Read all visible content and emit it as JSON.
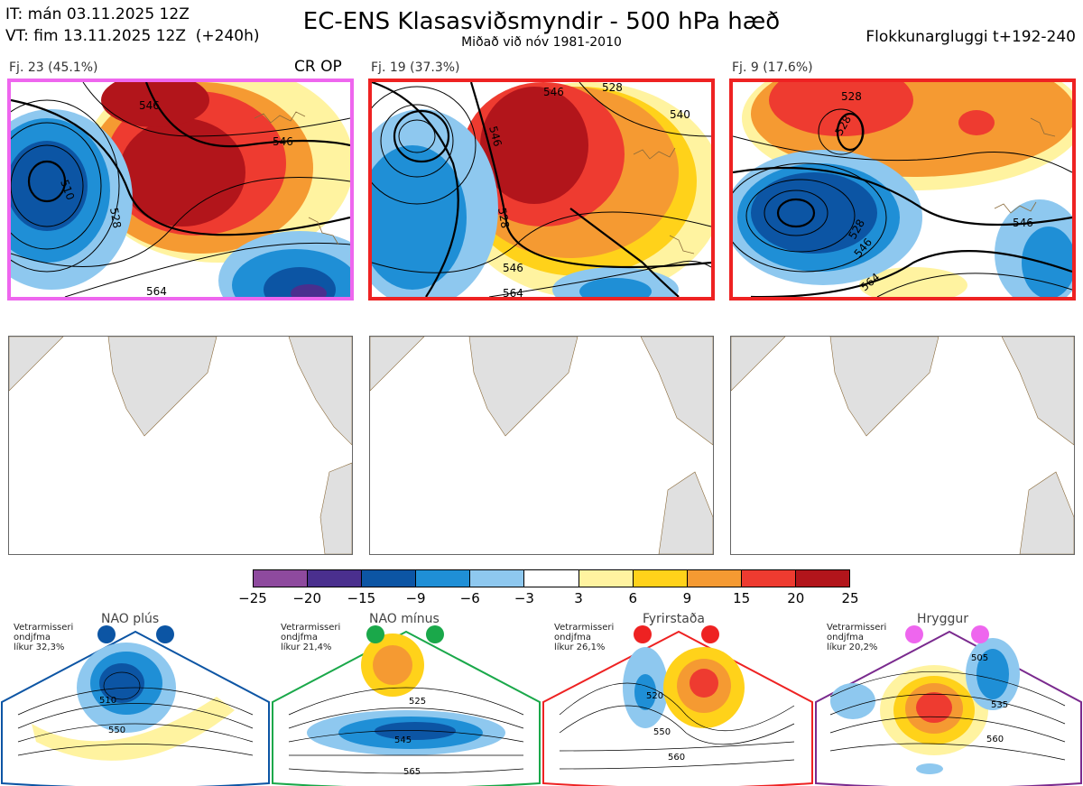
{
  "header": {
    "init_time": "IT: mán 03.11.2025 12Z",
    "valid_time": "VT: fim 13.11.2025 12Z  (+240h)",
    "title": "EC-ENS Klasasviðsmyndir - 500 hPa hæð",
    "subtitle": "Miðað við nóv 1981-2010",
    "window": "Flokkunargluggi t+192-240"
  },
  "clusters": [
    {
      "label": "Fj. 23 (45.1%)",
      "tag": "CR OP",
      "border_color": "#ee66ee",
      "contours": [
        "546",
        "528",
        "546",
        "564",
        "510"
      ]
    },
    {
      "label": "Fj. 19 (37.3%)",
      "tag": "",
      "border_color": "#ee2222",
      "contours": [
        "546",
        "546",
        "528",
        "546",
        "564",
        "540",
        "528"
      ]
    },
    {
      "label": "Fj. 9 (17.6%)",
      "tag": "",
      "border_color": "#ee2222",
      "contours": [
        "528",
        "528",
        "528",
        "546",
        "564",
        "546"
      ]
    }
  ],
  "colorbar": {
    "ticks": [
      "−25",
      "−20",
      "−15",
      "−9",
      "−6",
      "−3",
      "3",
      "6",
      "9",
      "15",
      "20",
      "25"
    ],
    "colors": [
      "#8e4a9e",
      "#4a2f8e",
      "#0c55a4",
      "#1f8fd6",
      "#8ec8ef",
      "#ffffff",
      "#fff3a0",
      "#ffd21a",
      "#f59a32",
      "#ee3b30",
      "#b2151b"
    ]
  },
  "regimes": [
    {
      "name": "NAO plús",
      "note": [
        "Vetrarmisseri",
        "ondjfma",
        "líkur 32,3%"
      ],
      "color": "#0c55a4",
      "border_color": "#0c55a4",
      "contours": [
        "510",
        "550"
      ]
    },
    {
      "name": "NAO mínus",
      "note": [
        "Vetrarmisseri",
        "ondjfma",
        "líkur 21,4%"
      ],
      "color": "#1aa84a",
      "border_color": "#1aa84a",
      "contours": [
        "525",
        "545",
        "565"
      ]
    },
    {
      "name": "Fyrirstaða",
      "note": [
        "Vetrarmisseri",
        "ondjfma",
        "líkur 26,1%"
      ],
      "color": "#ee2222",
      "border_color": "#ee2222",
      "contours": [
        "520",
        "550",
        "560"
      ]
    },
    {
      "name": "Hryggur",
      "note": [
        "Vetrarmisseri",
        "ondjfma",
        "líkur 20,2%"
      ],
      "color": "#ee66ee",
      "border_color": "#7a2a8e",
      "contours": [
        "505",
        "535",
        "560"
      ]
    }
  ]
}
